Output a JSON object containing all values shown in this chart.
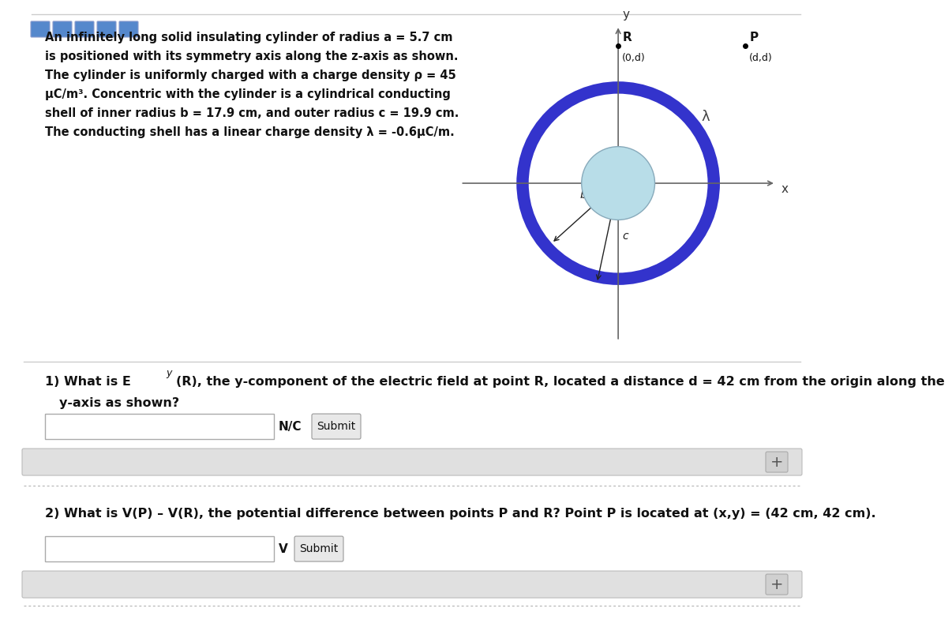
{
  "white": "#ffffff",
  "description_lines": [
    "An infinitely long solid insulating cylinder of radius a = 5.7 cm",
    "is positioned with its symmetry axis along the z-axis as shown.",
    "The cylinder is uniformly charged with a charge density ρ = 45",
    "μC/m³. Concentric with the cylinder is a cylindrical conducting",
    "shell of inner radius b = 17.9 cm, and outer radius c = 19.9 cm.",
    "The conducting shell has a linear charge density λ = -0.6μC/m."
  ],
  "outer_circle_color": "#3333cc",
  "inner_circle_color": "#b8dde8",
  "axis_color": "#666666",
  "text_color": "#111111",
  "q1_line1a": "1) What is E",
  "q1_sub": "y",
  "q1_line1b": "(R), the y-component of the electric field at point R, located a distance d = 42 cm from the origin along the",
  "q1_line2": "   y-axis as shown?",
  "q2_line": "2) What is V(P) – V(R), the potential difference between points P and R? Point P is located at (x,y) = (42 cm, 42 cm).",
  "unit1": "N/C",
  "unit2": "V",
  "btn_color": "#5588cc",
  "bar_color": "#e0e0e0",
  "input_edge": "#aaaaaa",
  "submit_face": "#e8e8e8",
  "sep_color": "#cccccc",
  "dot_sep_color": "#aaaaaa"
}
